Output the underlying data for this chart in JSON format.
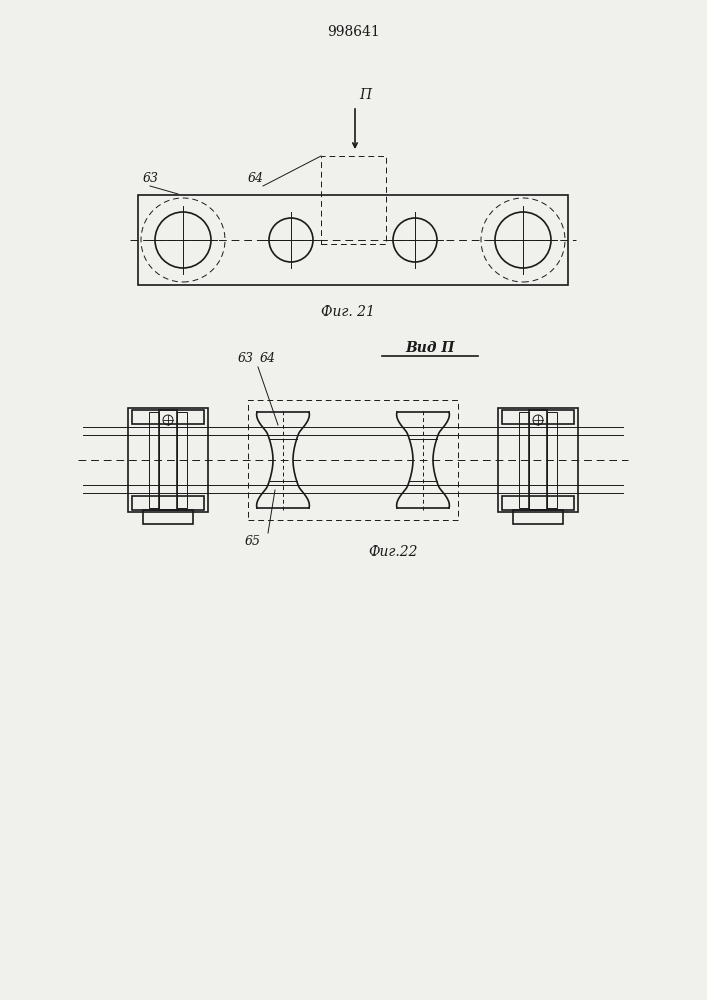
{
  "patent_number": "998641",
  "fig21_label": "Фиг. 21",
  "fig22_label": "Фиг.22",
  "vid_label": "Вид П",
  "section_label": "П",
  "label_63": "63",
  "label_64": "64",
  "label_65": "65",
  "bg_color": "#f0f0ec",
  "line_color": "#1a1a1a"
}
